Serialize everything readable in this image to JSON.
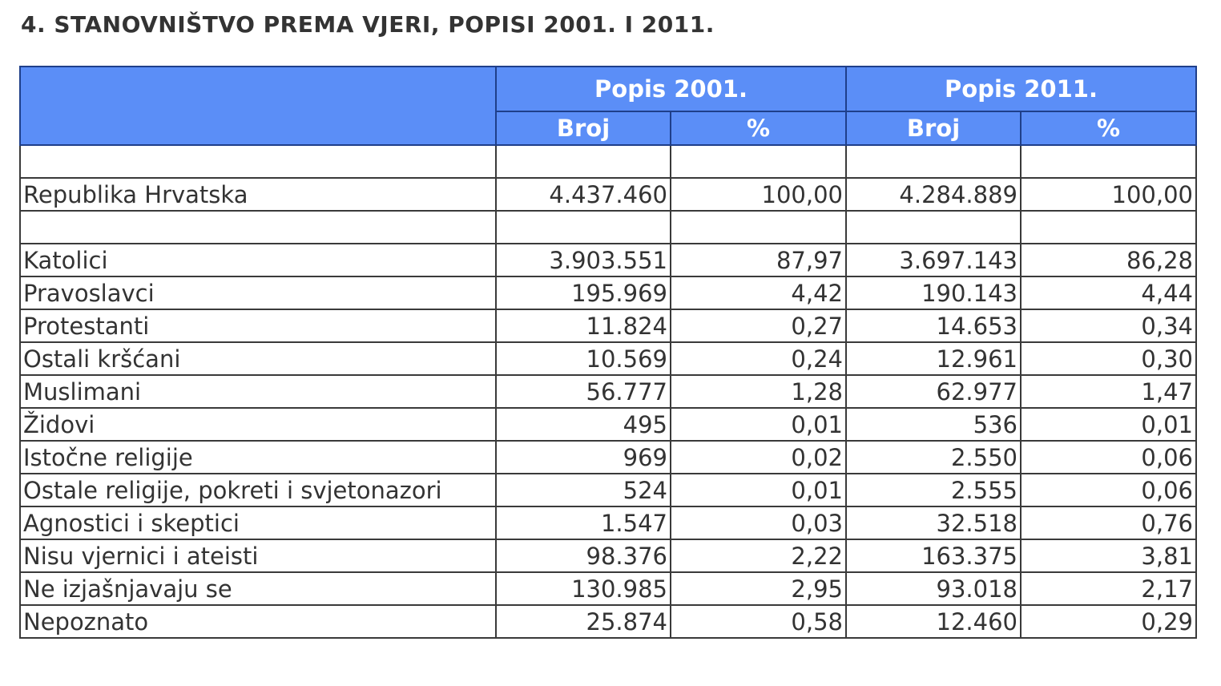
{
  "title": "4. STANOVNIŠTVO PREMA VJERI, POPISI 2001. I 2011.",
  "header": {
    "group_2001": "Popis 2001.",
    "group_2011": "Popis 2011.",
    "col_count": "Broj",
    "col_pct": "%"
  },
  "rows": [
    {
      "name": "",
      "n2001": "",
      "p2001": "",
      "n2011": "",
      "p2011": ""
    },
    {
      "name": "Republika Hrvatska",
      "n2001": "4.437.460",
      "p2001": "100,00",
      "n2011": "4.284.889",
      "p2011": "100,00"
    },
    {
      "name": "",
      "n2001": "",
      "p2001": "",
      "n2011": "",
      "p2011": ""
    },
    {
      "name": "Katolici",
      "n2001": "3.903.551",
      "p2001": "87,97",
      "n2011": "3.697.143",
      "p2011": "86,28"
    },
    {
      "name": "Pravoslavci",
      "n2001": "195.969",
      "p2001": "4,42",
      "n2011": "190.143",
      "p2011": "4,44"
    },
    {
      "name": "Protestanti",
      "n2001": "11.824",
      "p2001": "0,27",
      "n2011": "14.653",
      "p2011": "0,34"
    },
    {
      "name": "Ostali kršćani",
      "n2001": "10.569",
      "p2001": "0,24",
      "n2011": "12.961",
      "p2011": "0,30"
    },
    {
      "name": "Muslimani",
      "n2001": "56.777",
      "p2001": "1,28",
      "n2011": "62.977",
      "p2011": "1,47"
    },
    {
      "name": "Židovi",
      "n2001": "495",
      "p2001": "0,01",
      "n2011": "536",
      "p2011": "0,01"
    },
    {
      "name": "Istočne religije",
      "n2001": "969",
      "p2001": "0,02",
      "n2011": "2.550",
      "p2011": "0,06"
    },
    {
      "name": "Ostale religije, pokreti i svjetonazori",
      "n2001": "524",
      "p2001": "0,01",
      "n2011": "2.555",
      "p2011": "0,06"
    },
    {
      "name": "Agnostici i skeptici",
      "n2001": "1.547",
      "p2001": "0,03",
      "n2011": "32.518",
      "p2011": "0,76"
    },
    {
      "name": "Nisu vjernici i ateisti",
      "n2001": "98.376",
      "p2001": "2,22",
      "n2011": "163.375",
      "p2011": "3,81"
    },
    {
      "name": "Ne izjašnjavaju se",
      "n2001": "130.985",
      "p2001": "2,95",
      "n2011": "93.018",
      "p2011": "2,17"
    },
    {
      "name": "Nepoznato",
      "n2001": "25.874",
      "p2001": "0,58",
      "n2011": "12.460",
      "p2011": "0,29"
    }
  ],
  "colors": {
    "header_bg": "#5b8ef7",
    "header_text": "#ffffff",
    "border": "#3a3a3a"
  }
}
